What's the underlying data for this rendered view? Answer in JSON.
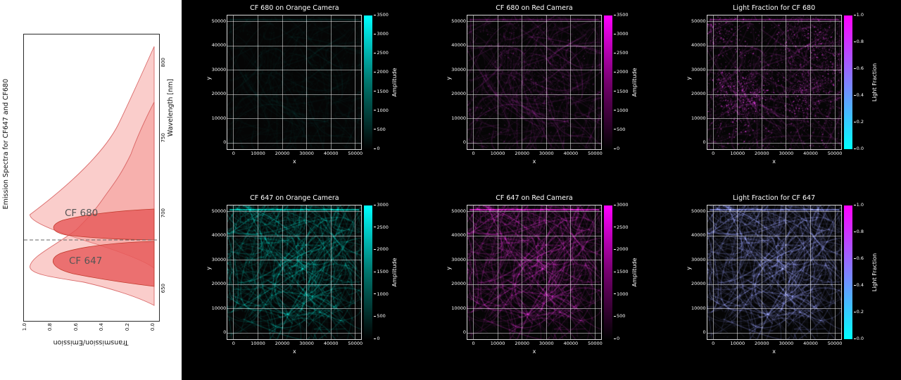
{
  "spectra": {
    "title": "Emission Spectra for CF647 and CF680",
    "bottom_axis_label": "Transmission/Emission",
    "right_axis_label": "Wavelength [nm]",
    "wavelength_ticks": [
      "800",
      "750",
      "700",
      "650"
    ],
    "transmission_ticks": [
      "1.0",
      "0.8",
      "0.6",
      "0.4",
      "0.2",
      "0.0"
    ],
    "annotations": [
      {
        "label": "CF 680"
      },
      {
        "label": "CF 647"
      }
    ],
    "dashed_split_nm": 683,
    "colors": {
      "emission_fill": "#f2a19e",
      "emission_edge": "#d65c5c",
      "detected_fill": "#e66a6a",
      "detected_edge": "#c0392b",
      "dashed_line": "#666666"
    }
  },
  "panels": [
    {
      "title": "CF 680 on Orange Camera",
      "xlabel": "x",
      "ylabel": "y",
      "xticks": [
        "0",
        "10000",
        "20000",
        "30000",
        "40000",
        "50000"
      ],
      "yticks": [
        "0",
        "10000",
        "20000",
        "30000",
        "40000",
        "50000"
      ],
      "colorbar": {
        "label": "Amplitude",
        "ticks_top_to_bottom": [
          "3500",
          "3000",
          "2500",
          "2000",
          "1500",
          "1000",
          "500",
          "0"
        ],
        "gradient": {
          "top": "#00ffff",
          "mid": "#00756d",
          "bottom": "#020202"
        }
      },
      "render": {
        "seed": 11,
        "color": "#00d8c6",
        "curves_count": 300,
        "curves_alpha": 0.03,
        "speckles_count": 400,
        "speckles_alpha": 0.05,
        "mask": false,
        "topline": 0.15
      }
    },
    {
      "title": "CF 680 on Red Camera",
      "xlabel": "x",
      "ylabel": "y",
      "xticks": [
        "0",
        "10000",
        "20000",
        "30000",
        "40000",
        "50000"
      ],
      "yticks": [
        "0",
        "10000",
        "20000",
        "30000",
        "40000",
        "50000"
      ],
      "colorbar": {
        "label": "Amplitude",
        "ticks_top_to_bottom": [
          "3500",
          "3000",
          "2500",
          "2000",
          "1500",
          "1000",
          "500",
          "0"
        ],
        "gradient": {
          "top": "#ff00ff",
          "mid": "#75006e",
          "bottom": "#020202"
        }
      },
      "render": {
        "seed": 11,
        "color": "#ff35ff",
        "curves_count": 300,
        "curves_alpha": 0.09,
        "speckles_count": 1200,
        "speckles_alpha": 0.22,
        "mask": false,
        "topline": 0.3
      }
    },
    {
      "title": "Light Fraction for CF 680",
      "xlabel": "x",
      "ylabel": "y",
      "xticks": [
        "0",
        "10000",
        "20000",
        "30000",
        "40000",
        "50000"
      ],
      "yticks": [
        "0",
        "10000",
        "20000",
        "30000",
        "40000",
        "50000"
      ],
      "colorbar": {
        "label": "Light Fraction",
        "ticks_top_to_bottom": [
          "1.0",
          "0.8",
          "0.6",
          "0.4",
          "0.2",
          "0.0"
        ],
        "gradient": {
          "top": "#ff00ff",
          "mid": "#8080ff",
          "bottom": "#00ffff"
        }
      },
      "render": {
        "seed": 11,
        "color": "#ff3dff",
        "curves_count": 220,
        "curves_alpha": 0.1,
        "speckles_count": 3000,
        "speckles_alpha": 0.5,
        "mask": false,
        "topline": 0.45
      }
    },
    {
      "title": "CF 647 on Orange Camera",
      "xlabel": "x",
      "ylabel": "y",
      "xticks": [
        "0",
        "10000",
        "20000",
        "30000",
        "40000",
        "50000"
      ],
      "yticks": [
        "0",
        "10000",
        "20000",
        "30000",
        "40000",
        "50000"
      ],
      "colorbar": {
        "label": "Amplitude",
        "ticks_top_to_bottom": [
          "3000",
          "2500",
          "2000",
          "1500",
          "1000",
          "500",
          "0"
        ],
        "gradient": {
          "top": "#00ffff",
          "mid": "#00756d",
          "bottom": "#020202"
        }
      },
      "render": {
        "seed": 4,
        "color": "#00e8d6",
        "curves_count": 560,
        "curves_alpha": 0.15,
        "speckles_count": 600,
        "speckles_alpha": 0.12,
        "mask": true,
        "topline": 0.9
      }
    },
    {
      "title": "CF 647 on Red Camera",
      "xlabel": "x",
      "ylabel": "y",
      "xticks": [
        "0",
        "10000",
        "20000",
        "30000",
        "40000",
        "50000"
      ],
      "yticks": [
        "0",
        "10000",
        "20000",
        "30000",
        "40000",
        "50000"
      ],
      "colorbar": {
        "label": "Amplitude",
        "ticks_top_to_bottom": [
          "3000",
          "2500",
          "2000",
          "1500",
          "1000",
          "500",
          "0"
        ],
        "gradient": {
          "top": "#ff00ff",
          "mid": "#75006e",
          "bottom": "#020202"
        }
      },
      "render": {
        "seed": 4,
        "color": "#ff2df2",
        "curves_count": 560,
        "curves_alpha": 0.15,
        "speckles_count": 600,
        "speckles_alpha": 0.12,
        "mask": true,
        "topline": 0.9
      }
    },
    {
      "title": "Light Fraction for CF 647",
      "xlabel": "x",
      "ylabel": "y",
      "xticks": [
        "0",
        "10000",
        "20000",
        "30000",
        "40000",
        "50000"
      ],
      "yticks": [
        "0",
        "10000",
        "20000",
        "30000",
        "40000",
        "50000"
      ],
      "colorbar": {
        "label": "Light Fraction",
        "ticks_top_to_bottom": [
          "1.0",
          "0.8",
          "0.6",
          "0.4",
          "0.2",
          "0.0"
        ],
        "gradient": {
          "top": "#ff00ff",
          "mid": "#8080ff",
          "bottom": "#00ffff"
        }
      },
      "render": {
        "seed": 4,
        "color": "#8f98f5",
        "curves_count": 560,
        "curves_alpha": 0.2,
        "speckles_count": 600,
        "speckles_alpha": 0.15,
        "mask": true,
        "topline": 0.85
      }
    }
  ],
  "chart_data": [
    {
      "type": "area",
      "title": "Emission Spectra for CF647 and CF680",
      "xlabel": "Wavelength [nm]",
      "ylabel": "Transmission/Emission",
      "x_range": [
        630,
        820
      ],
      "y_range": [
        0.0,
        1.0
      ],
      "x_ticks": [
        650,
        700,
        750,
        800
      ],
      "y_ticks": [
        0.0,
        0.2,
        0.4,
        0.6,
        0.8,
        1.0
      ],
      "series": [
        {
          "name": "CF 647",
          "kind": "emission spectrum",
          "peak_nm": 665,
          "peak_value": 1.0
        },
        {
          "name": "CF 680",
          "kind": "emission spectrum",
          "peak_nm": 700,
          "peak_value": 1.0
        }
      ],
      "annotations": [
        "CF 680",
        "CF 647"
      ],
      "dashed_split_nm": 683,
      "layout": "entire figure rotated 90 degrees counter-clockwise; wavelength increases upward"
    },
    {
      "type": "heatmap",
      "title": "CF 680 on Orange Camera",
      "xlabel": "x",
      "ylabel": "y",
      "x_range": [
        0,
        50000
      ],
      "y_range": [
        0,
        50000
      ],
      "ticks": [
        0,
        10000,
        20000,
        30000,
        40000,
        50000
      ],
      "colorbar": {
        "label": "Amplitude",
        "min": 0,
        "max": 3500,
        "tick_step": 500,
        "colormap": "black-to-cyan"
      },
      "content": "almost entirely dark; negligible CF680 signal on the orange camera"
    },
    {
      "type": "heatmap",
      "title": "CF 680 on Red Camera",
      "xlabel": "x",
      "ylabel": "y",
      "x_range": [
        0,
        50000
      ],
      "y_range": [
        0,
        50000
      ],
      "ticks": [
        0,
        10000,
        20000,
        30000,
        40000,
        50000
      ],
      "colorbar": {
        "label": "Amplitude",
        "min": 0,
        "max": 3500,
        "tick_step": 500,
        "colormap": "black-to-magenta"
      },
      "content": "faint sparse magenta wisps and speckles of CF680 signal"
    },
    {
      "type": "heatmap",
      "title": "Light Fraction for CF 680",
      "xlabel": "x",
      "ylabel": "y",
      "x_range": [
        0,
        50000
      ],
      "y_range": [
        0,
        50000
      ],
      "ticks": [
        0,
        10000,
        20000,
        30000,
        40000,
        50000
      ],
      "colorbar": {
        "label": "Light Fraction",
        "min": 0.0,
        "max": 1.0,
        "tick_step": 0.2,
        "colormap": "cool (cyan-to-magenta)"
      },
      "content": "scattered magenta speckles indicating light fraction near 1.0 where CF680 is present"
    },
    {
      "type": "heatmap",
      "title": "CF 647 on Orange Camera",
      "xlabel": "x",
      "ylabel": "y",
      "x_range": [
        0,
        50000
      ],
      "y_range": [
        0,
        50000
      ],
      "ticks": [
        0,
        10000,
        20000,
        30000,
        40000,
        50000
      ],
      "colorbar": {
        "label": "Amplitude",
        "min": 0,
        "max": 3000,
        "tick_step": 500,
        "colormap": "black-to-cyan"
      },
      "content": "dense bright cyan filament network (microtubule-like structures) covering most of the field"
    },
    {
      "type": "heatmap",
      "title": "CF 647 on Red Camera",
      "xlabel": "x",
      "ylabel": "y",
      "x_range": [
        0,
        50000
      ],
      "y_range": [
        0,
        50000
      ],
      "ticks": [
        0,
        10000,
        20000,
        30000,
        40000,
        50000
      ],
      "colorbar": {
        "label": "Amplitude",
        "min": 0,
        "max": 3000,
        "tick_step": 500,
        "colormap": "black-to-magenta"
      },
      "content": "same filament network rendered in magenta on the red camera"
    },
    {
      "type": "heatmap",
      "title": "Light Fraction for CF 647",
      "xlabel": "x",
      "ylabel": "y",
      "x_range": [
        0,
        50000
      ],
      "y_range": [
        0,
        50000
      ],
      "ticks": [
        0,
        10000,
        20000,
        30000,
        40000,
        50000
      ],
      "colorbar": {
        "label": "Light Fraction",
        "min": 0.0,
        "max": 1.0,
        "tick_step": 0.2,
        "colormap": "cool (cyan-to-magenta)"
      },
      "content": "filament network shown in periwinkle/blue, light fraction around 0.4-0.5"
    }
  ]
}
